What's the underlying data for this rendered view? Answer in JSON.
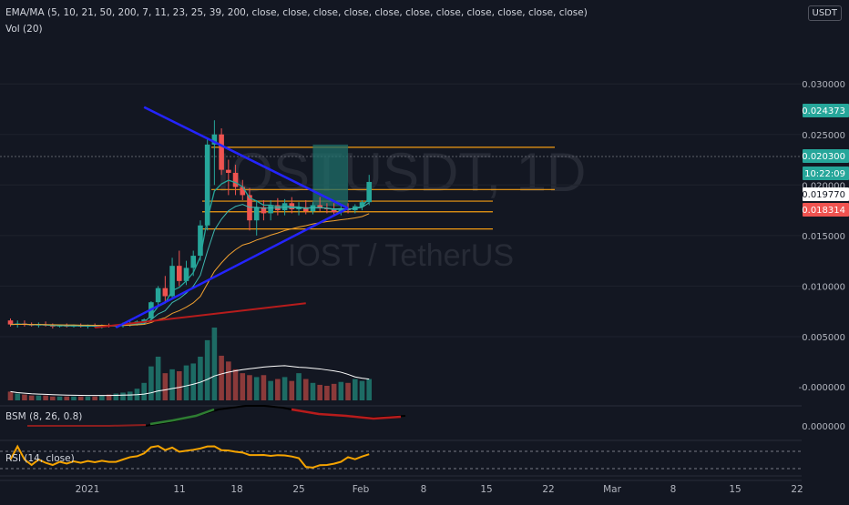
{
  "header": {
    "indicator_line": "EMA/MA (5, 10, 21, 50, 200, 7, 11, 23, 25, 39, 200, close, close, close, close, close, close, close, close, close, close, close)",
    "volume_label": "Vol (20)",
    "currency": "USDT"
  },
  "watermark": {
    "symbol": "IOSTUSDT, 1D",
    "pair": "IOST / TetherUS"
  },
  "subpanels": {
    "bsm_label": "BSM (8, 26, 0.8)",
    "rsi_label": "RSI (14, close)"
  },
  "price_scale": {
    "ticks": [
      "0.030000",
      "0.025000",
      "0.020000",
      "0.015000",
      "0.010000",
      "0.005000",
      "-0.000000",
      "0.000000"
    ],
    "tags": [
      {
        "label": "0.024373",
        "color": "#26a69a"
      },
      {
        "label": "0.020300",
        "color": "#26a69a"
      },
      {
        "label": "10:22:09",
        "color": "#26a69a"
      },
      {
        "label": "0.019770",
        "color": "#ffffff"
      },
      {
        "label": "0.018314",
        "color": "#ef5350"
      }
    ]
  },
  "time_axis": {
    "ticks": [
      "2021",
      "11",
      "18",
      "25",
      "Feb",
      "8",
      "15",
      "22",
      "Mar",
      "8",
      "15",
      "22"
    ]
  },
  "colors": {
    "background": "#131722",
    "up": "#26a69a",
    "down": "#ef5350",
    "trendline": "#2424ff",
    "level": "#f39c12",
    "ma200": "#b71c1c",
    "ema_fast": "#26a69a",
    "ema_slow": "#f0a030",
    "volume_ma": "#ffffff",
    "rsi": "#f5a300"
  },
  "chart_data": {
    "type": "candlestick",
    "title": "IOSTUSDT, 1D",
    "x_ticks": [
      "2021",
      "11",
      "18",
      "25",
      "Feb",
      "8",
      "15",
      "22",
      "Mar",
      "8",
      "15",
      "22"
    ],
    "y_ticks": [
      0.03,
      0.025,
      0.02,
      0.015,
      0.01,
      0.005
    ],
    "ylim": [
      -0.005,
      0.0333
    ],
    "start_date": "2020-12-25",
    "ohlc": [
      [
        0.0066,
        0.0068,
        0.006,
        0.0062
      ],
      [
        0.0062,
        0.0066,
        0.0059,
        0.0063
      ],
      [
        0.0063,
        0.0066,
        0.006,
        0.0062
      ],
      [
        0.0062,
        0.0064,
        0.006,
        0.0061
      ],
      [
        0.0061,
        0.0064,
        0.0059,
        0.0062
      ],
      [
        0.0062,
        0.0065,
        0.006,
        0.0061
      ],
      [
        0.0061,
        0.0063,
        0.0058,
        0.006
      ],
      [
        0.006,
        0.0062,
        0.0059,
        0.0061
      ],
      [
        0.0061,
        0.0063,
        0.0059,
        0.006
      ],
      [
        0.006,
        0.0062,
        0.0059,
        0.0061
      ],
      [
        0.0061,
        0.0063,
        0.0059,
        0.006
      ],
      [
        0.006,
        0.0062,
        0.0058,
        0.0061
      ],
      [
        0.0061,
        0.0063,
        0.0059,
        0.006
      ],
      [
        0.006,
        0.0062,
        0.0058,
        0.0061
      ],
      [
        0.0061,
        0.0063,
        0.0059,
        0.006
      ],
      [
        0.006,
        0.0062,
        0.0059,
        0.0061
      ],
      [
        0.0061,
        0.0064,
        0.0059,
        0.0062
      ],
      [
        0.0062,
        0.0065,
        0.006,
        0.0063
      ],
      [
        0.0063,
        0.0066,
        0.0061,
        0.0065
      ],
      [
        0.0065,
        0.0068,
        0.0063,
        0.0067
      ],
      [
        0.0068,
        0.0085,
        0.0066,
        0.0084
      ],
      [
        0.0084,
        0.01,
        0.008,
        0.0098
      ],
      [
        0.0098,
        0.011,
        0.0085,
        0.009
      ],
      [
        0.009,
        0.0128,
        0.0088,
        0.012
      ],
      [
        0.012,
        0.0135,
        0.01,
        0.0105
      ],
      [
        0.0105,
        0.0125,
        0.0101,
        0.0118
      ],
      [
        0.0118,
        0.0135,
        0.011,
        0.013
      ],
      [
        0.013,
        0.0165,
        0.0125,
        0.016
      ],
      [
        0.016,
        0.0245,
        0.0155,
        0.024
      ],
      [
        0.024,
        0.0264,
        0.02,
        0.025
      ],
      [
        0.025,
        0.0256,
        0.021,
        0.0215
      ],
      [
        0.0215,
        0.0225,
        0.019,
        0.0212
      ],
      [
        0.0212,
        0.022,
        0.019,
        0.0198
      ],
      [
        0.0198,
        0.0205,
        0.0185,
        0.019
      ],
      [
        0.019,
        0.0197,
        0.0155,
        0.0165
      ],
      [
        0.0165,
        0.0185,
        0.015,
        0.0178
      ],
      [
        0.0178,
        0.0185,
        0.0165,
        0.0172
      ],
      [
        0.0172,
        0.0185,
        0.0165,
        0.018
      ],
      [
        0.018,
        0.0187,
        0.017,
        0.0175
      ],
      [
        0.0175,
        0.0186,
        0.017,
        0.0182
      ],
      [
        0.0182,
        0.0188,
        0.0172,
        0.0176
      ],
      [
        0.0176,
        0.0183,
        0.017,
        0.0178
      ],
      [
        0.0178,
        0.0185,
        0.0171,
        0.0174
      ],
      [
        0.0174,
        0.0183,
        0.0171,
        0.018
      ],
      [
        0.018,
        0.0188,
        0.0174,
        0.0177
      ],
      [
        0.0177,
        0.0182,
        0.0172,
        0.0176
      ],
      [
        0.0176,
        0.0182,
        0.017,
        0.0173
      ],
      [
        0.0173,
        0.018,
        0.017,
        0.0177
      ],
      [
        0.0177,
        0.0182,
        0.0172,
        0.0175
      ],
      [
        0.0175,
        0.0181,
        0.0172,
        0.0179
      ],
      [
        0.0179,
        0.0185,
        0.0175,
        0.0183
      ],
      [
        0.0183,
        0.021,
        0.018,
        0.0203
      ]
    ],
    "volume": [
      9,
      7,
      6,
      5,
      5,
      5,
      4,
      4,
      4,
      4,
      4,
      4,
      4,
      5,
      6,
      7,
      8,
      9,
      12,
      18,
      35,
      45,
      28,
      32,
      30,
      36,
      38,
      45,
      62,
      75,
      46,
      40,
      32,
      28,
      26,
      24,
      26,
      20,
      22,
      24,
      20,
      28,
      22,
      18,
      16,
      15,
      17,
      19,
      18,
      22,
      20,
      22
    ],
    "levels": [
      0.02373,
      0.01955,
      0.0184,
      0.01735,
      0.01565
    ],
    "trendlines": [
      {
        "from": [
          "2021-01-13",
          0.0277
        ],
        "to": [
          "2021-02-11",
          0.0177
        ]
      },
      {
        "from": [
          "2021-01-09",
          0.0059
        ],
        "to": [
          "2021-02-11",
          0.0177
        ]
      }
    ],
    "target_zone": {
      "from": "2021-02-06",
      "to": "2021-02-11",
      "top": 0.024,
      "bottom": 0.0179
    },
    "ma200": {
      "from": [
        "2021-01-06",
        0.0059
      ],
      "to": [
        "2021-02-05",
        0.0083
      ]
    }
  }
}
